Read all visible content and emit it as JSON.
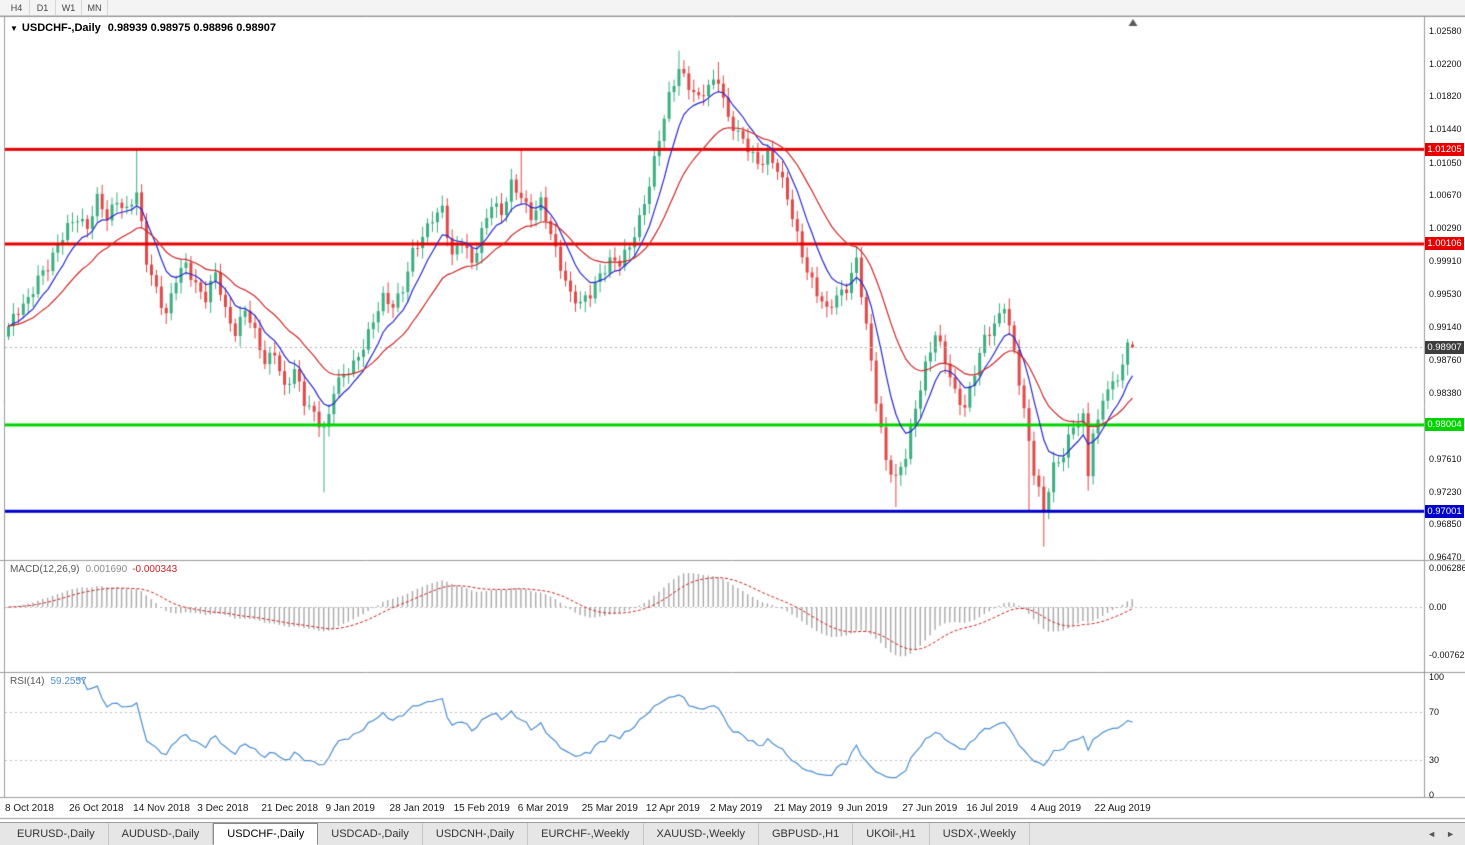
{
  "toolbar": {
    "timeframes": [
      "H4",
      "D1",
      "W1",
      "MN"
    ]
  },
  "chart": {
    "title": "USDCHF-,Daily",
    "ohlc": "0.98939 0.98975 0.98896 0.98907"
  },
  "colors": {
    "up": "#3cae82",
    "down": "#e04848",
    "ma_fast": "#2929cc",
    "ma_slow": "#cc2929",
    "macd_hist": "#a9a9a9",
    "macd_signal": "#cc2222",
    "rsi": "#4f8fd0",
    "current_box": "#3d3d3d",
    "level_red": "#e60000",
    "level_green": "#00d400",
    "level_blue": "#0000cc"
  },
  "price_axis": {
    "ticks": [
      {
        "label": "1.02580",
        "price": 1.0258
      },
      {
        "label": "1.02200",
        "price": 1.022
      },
      {
        "label": "1.01820",
        "price": 1.0182
      },
      {
        "label": "1.01440",
        "price": 1.0144
      },
      {
        "label": "1.01050",
        "price": 1.0105
      },
      {
        "label": "1.00670",
        "price": 1.0067
      },
      {
        "label": "1.00290",
        "price": 1.0029
      },
      {
        "label": "0.99910",
        "price": 0.9991
      },
      {
        "label": "0.99530",
        "price": 0.9953
      },
      {
        "label": "0.99140",
        "price": 0.9914
      },
      {
        "label": "0.98760",
        "price": 0.9876
      },
      {
        "label": "0.98380",
        "price": 0.9838
      },
      {
        "label": "0.97610",
        "price": 0.9761
      },
      {
        "label": "0.97230",
        "price": 0.9723
      },
      {
        "label": "0.96850",
        "price": 0.9685
      },
      {
        "label": "0.96470",
        "price": 0.9647
      }
    ]
  },
  "levels": [
    {
      "label": "1.01205",
      "price": 1.01205,
      "color": "#e60000"
    },
    {
      "label": "1.00106",
      "price": 1.00106,
      "color": "#e60000"
    },
    {
      "label": "0.98004",
      "price": 0.98004,
      "color": "#00d400"
    },
    {
      "label": "0.97001",
      "price": 0.97001,
      "color": "#0000cc"
    }
  ],
  "current_price": {
    "label": "0.98907",
    "price": 0.98907
  },
  "macd": {
    "name": "MACD(12,26,9)",
    "main_value": "0.001690",
    "signal_value": "-0.000343",
    "axis": [
      {
        "label": "0.006286",
        "value": 0.006286
      },
      {
        "label": "0.00",
        "value": 0
      },
      {
        "label": "-0.00762",
        "value": -0.00762
      }
    ]
  },
  "rsi": {
    "name": "RSI(14)",
    "value": "59.2557",
    "axis": [
      {
        "label": "100",
        "value": 100
      },
      {
        "label": "70",
        "value": 70
      },
      {
        "label": "30",
        "value": 30
      },
      {
        "label": "0",
        "value": 0
      }
    ]
  },
  "time_axis": {
    "dates": [
      {
        "label": "8 Oct 2018",
        "bar": 0
      },
      {
        "label": "26 Oct 2018",
        "bar": 13
      },
      {
        "label": "14 Nov 2018",
        "bar": 26
      },
      {
        "label": "3 Dec 2018",
        "bar": 39
      },
      {
        "label": "21 Dec 2018",
        "bar": 52
      },
      {
        "label": "9 Jan 2019",
        "bar": 65
      },
      {
        "label": "28 Jan 2019",
        "bar": 78
      },
      {
        "label": "15 Feb 2019",
        "bar": 91
      },
      {
        "label": "6 Mar 2019",
        "bar": 104
      },
      {
        "label": "25 Mar 2019",
        "bar": 117
      },
      {
        "label": "12 Apr 2019",
        "bar": 130
      },
      {
        "label": "2 May 2019",
        "bar": 143
      },
      {
        "label": "21 May 2019",
        "bar": 156
      },
      {
        "label": "9 Jun 2019",
        "bar": 169
      },
      {
        "label": "27 Jun 2019",
        "bar": 182
      },
      {
        "label": "16 Jul 2019",
        "bar": 195
      },
      {
        "label": "4 Aug 2019",
        "bar": 208
      },
      {
        "label": "22 Aug 2019",
        "bar": 221
      }
    ]
  },
  "tabbar": {
    "tabs": [
      "EURUSD-,Daily",
      "AUDUSD-,Daily",
      "USDCHF-,Daily",
      "USDCAD-,Daily",
      "USDCNH-,Daily",
      "EURCHF-,Weekly",
      "XAUUSD-,Weekly",
      "GBPUSD-,H1",
      "UKOil-,H1",
      "USDX-,Weekly"
    ],
    "active_index": 2,
    "scroll_left": "◄",
    "scroll_right": "►"
  },
  "chart_data": {
    "type": "candlestick",
    "symbol": "USDCHF",
    "period": "Daily",
    "bars": 229,
    "y_range": [
      0.96435,
      1.02731
    ],
    "ohlc_current": {
      "open": 0.98939,
      "high": 0.98975,
      "low": 0.98896,
      "close": 0.98907
    },
    "close_keyframes": [
      [
        0,
        0.9915
      ],
      [
        2,
        0.993
      ],
      [
        4,
        0.9945
      ],
      [
        6,
        0.9975
      ],
      [
        8,
        0.9985
      ],
      [
        10,
        1.0005
      ],
      [
        12,
        1.003
      ],
      [
        14,
        1.0045
      ],
      [
        16,
        1.003
      ],
      [
        18,
        1.006
      ],
      [
        20,
        1.004
      ],
      [
        22,
        1.0065
      ],
      [
        24,
        1.005
      ],
      [
        26,
        1.0068
      ],
      [
        28,
        0.999
      ],
      [
        30,
        0.996
      ],
      [
        32,
        0.993
      ],
      [
        34,
        0.9968
      ],
      [
        36,
        0.9985
      ],
      [
        38,
        0.9965
      ],
      [
        40,
        0.995
      ],
      [
        42,
        0.9975
      ],
      [
        44,
        0.993
      ],
      [
        46,
        0.991
      ],
      [
        48,
        0.9938
      ],
      [
        50,
        0.9905
      ],
      [
        52,
        0.987
      ],
      [
        54,
        0.9888
      ],
      [
        56,
        0.9845
      ],
      [
        58,
        0.9862
      ],
      [
        60,
        0.9825
      ],
      [
        62,
        0.9815
      ],
      [
        64,
        0.9798
      ],
      [
        65,
        0.9812
      ],
      [
        66,
        0.984
      ],
      [
        68,
        0.9856
      ],
      [
        70,
        0.9872
      ],
      [
        72,
        0.9895
      ],
      [
        74,
        0.992
      ],
      [
        76,
        0.9945
      ],
      [
        78,
        0.994
      ],
      [
        80,
        0.9962
      ],
      [
        82,
        1.0
      ],
      [
        84,
        1.0015
      ],
      [
        86,
        1.0042
      ],
      [
        88,
        1.0055
      ],
      [
        90,
        0.9995
      ],
      [
        92,
        1.0012
      ],
      [
        94,
        0.9988
      ],
      [
        96,
        1.0028
      ],
      [
        98,
        1.0058
      ],
      [
        100,
        1.0042
      ],
      [
        102,
        1.008
      ],
      [
        104,
        1.007
      ],
      [
        106,
        1.0042
      ],
      [
        108,
        1.0056
      ],
      [
        110,
        1.0022
      ],
      [
        112,
        0.9988
      ],
      [
        114,
        0.9952
      ],
      [
        116,
        0.9938
      ],
      [
        118,
        0.9952
      ],
      [
        120,
        0.9978
      ],
      [
        122,
        0.9992
      ],
      [
        124,
        0.9986
      ],
      [
        126,
        1.0006
      ],
      [
        128,
        1.0042
      ],
      [
        130,
        1.0082
      ],
      [
        132,
        1.013
      ],
      [
        134,
        1.018
      ],
      [
        136,
        1.0218
      ],
      [
        138,
        1.0196
      ],
      [
        140,
        1.0176
      ],
      [
        142,
        1.0192
      ],
      [
        144,
        1.0205
      ],
      [
        146,
        1.0158
      ],
      [
        148,
        1.0136
      ],
      [
        150,
        1.012
      ],
      [
        152,
        1.0106
      ],
      [
        154,
        1.0116
      ],
      [
        156,
        1.0096
      ],
      [
        158,
        1.0062
      ],
      [
        160,
        1.0022
      ],
      [
        162,
        0.9982
      ],
      [
        164,
        0.9952
      ],
      [
        166,
        0.993
      ],
      [
        168,
        0.9952
      ],
      [
        170,
        0.9962
      ],
      [
        172,
        0.999
      ],
      [
        174,
        0.9912
      ],
      [
        176,
        0.9832
      ],
      [
        178,
        0.9762
      ],
      [
        180,
        0.9736
      ],
      [
        182,
        0.9762
      ],
      [
        184,
        0.9822
      ],
      [
        186,
        0.9872
      ],
      [
        188,
        0.9906
      ],
      [
        190,
        0.9872
      ],
      [
        192,
        0.9838
      ],
      [
        194,
        0.9824
      ],
      [
        196,
        0.9862
      ],
      [
        198,
        0.9898
      ],
      [
        200,
        0.9916
      ],
      [
        202,
        0.9944
      ],
      [
        204,
        0.9886
      ],
      [
        206,
        0.9812
      ],
      [
        208,
        0.9746
      ],
      [
        210,
        0.9706
      ],
      [
        212,
        0.9752
      ],
      [
        214,
        0.9762
      ],
      [
        216,
        0.98
      ],
      [
        218,
        0.9812
      ],
      [
        219,
        0.9748
      ],
      [
        220,
        0.9792
      ],
      [
        221,
        0.98
      ],
      [
        222,
        0.983
      ],
      [
        224,
        0.9846
      ],
      [
        226,
        0.9872
      ],
      [
        227,
        0.9896
      ],
      [
        228,
        0.98907
      ]
    ],
    "wick_overrides": [
      [
        26,
        "h",
        1.0122
      ],
      [
        64,
        "l",
        0.9722
      ],
      [
        104,
        "h",
        1.0122
      ],
      [
        136,
        "h",
        1.0235
      ],
      [
        144,
        "h",
        1.0222
      ],
      [
        172,
        "h",
        1.0008
      ],
      [
        180,
        "l",
        0.9705
      ],
      [
        207,
        "l",
        0.9701
      ],
      [
        210,
        "l",
        0.9659
      ],
      [
        219,
        "l",
        0.9724
      ]
    ],
    "moving_averages": [
      {
        "type": "ema",
        "period": 8,
        "color": "#2929cc"
      },
      {
        "type": "ema",
        "period": 21,
        "color": "#cc2929"
      }
    ],
    "indicators": [
      {
        "name": "MACD",
        "params": [
          12,
          26,
          9
        ],
        "current_main": 0.00169,
        "current_signal": -0.000343,
        "axis_max": 0.006286,
        "axis_min": -0.00762
      },
      {
        "name": "RSI",
        "params": [
          14
        ],
        "current": 59.2557,
        "levels": [
          70,
          30
        ]
      }
    ]
  }
}
